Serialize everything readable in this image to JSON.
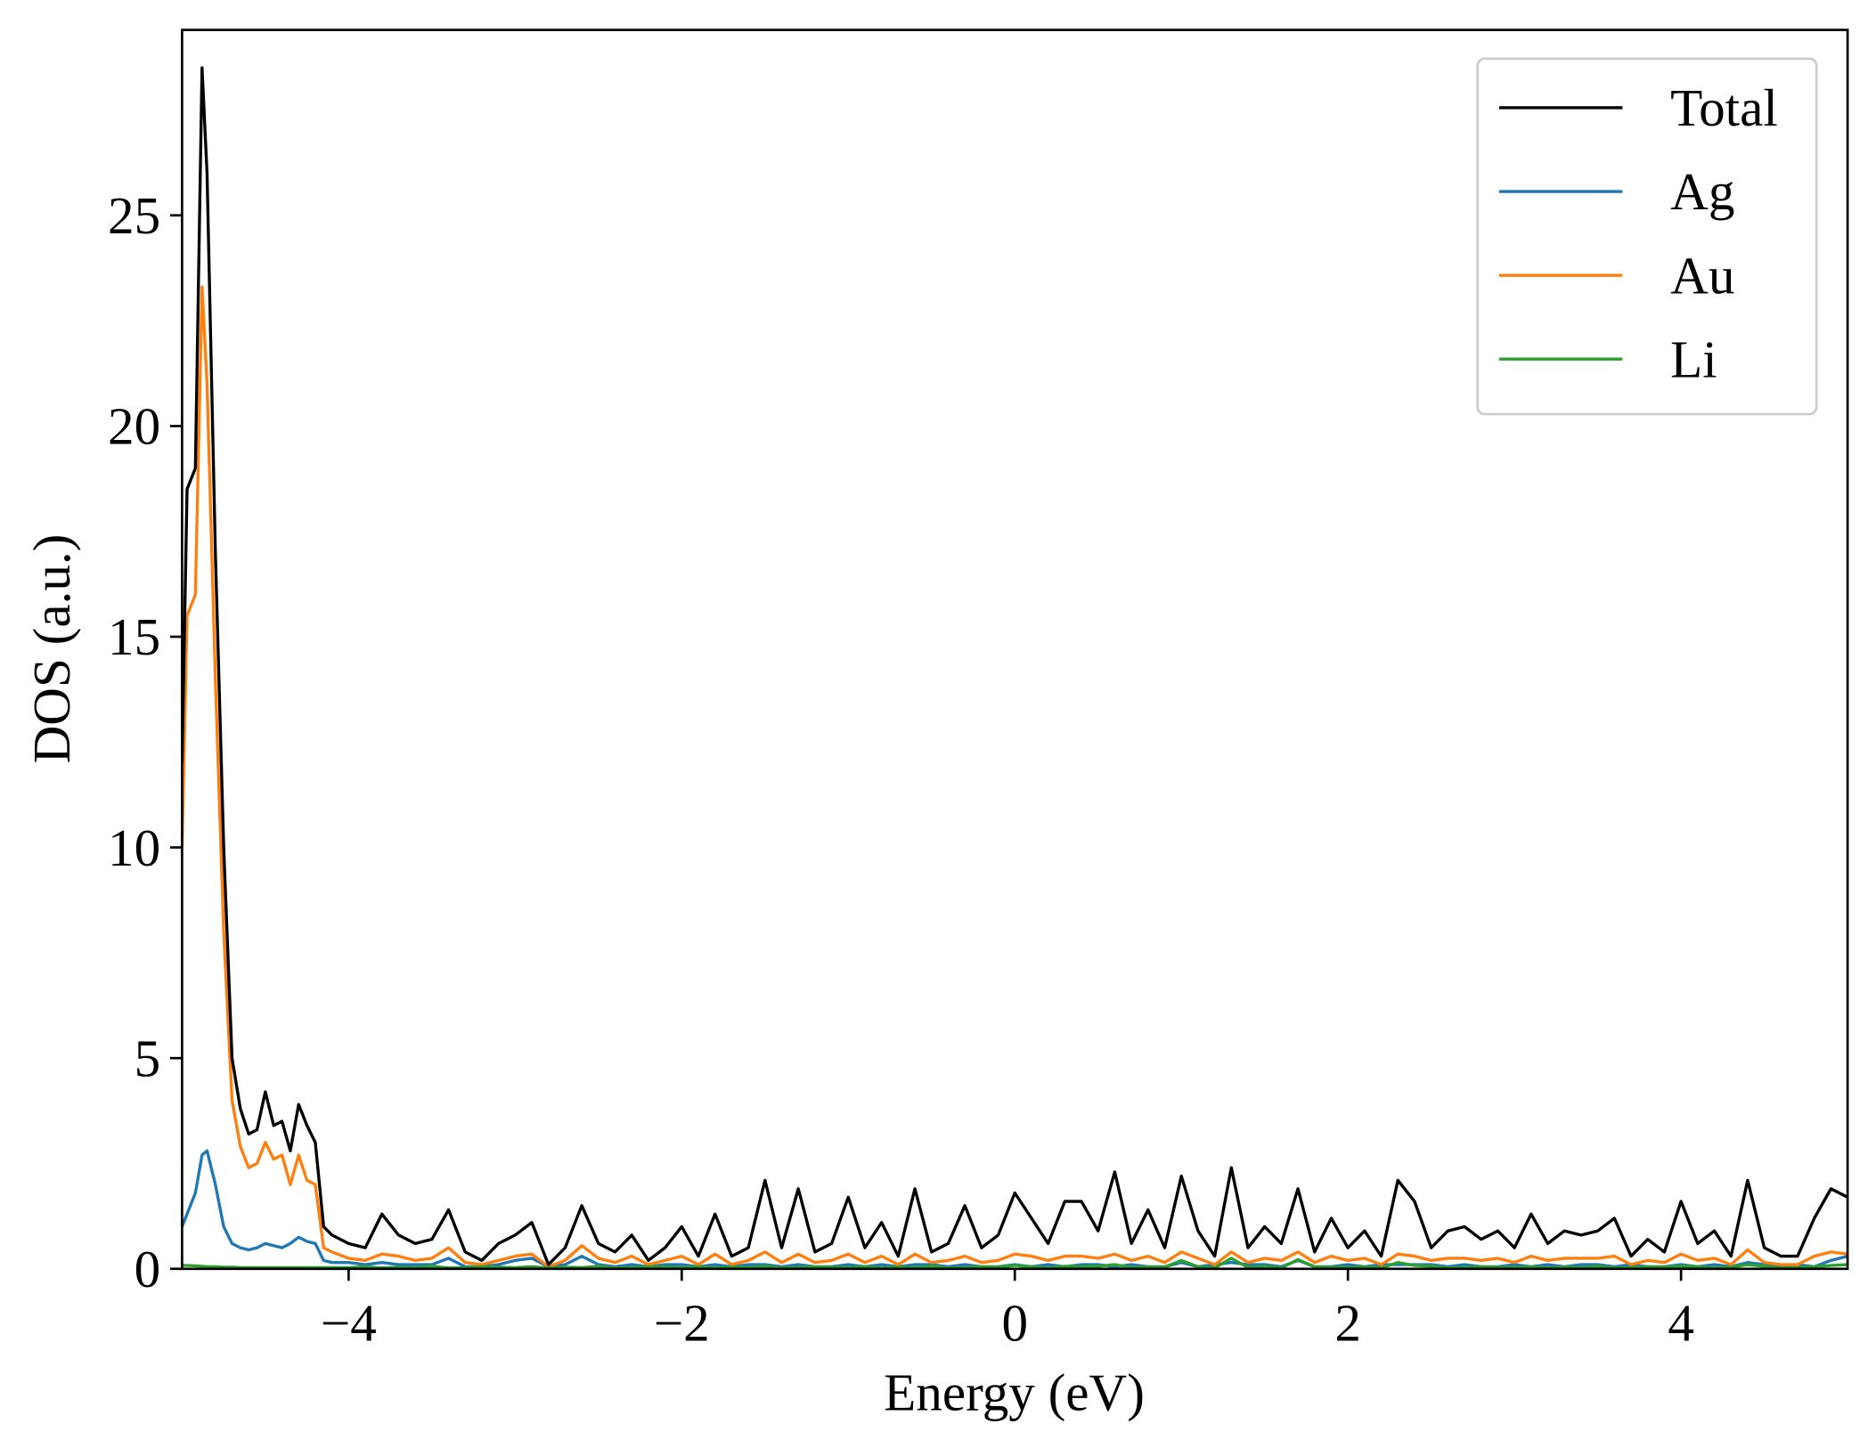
{
  "chart_data": {
    "type": "line",
    "xlabel": "Energy (eV)",
    "ylabel": "DOS (a.u.)",
    "xlim": [
      -5,
      5
    ],
    "ylim": [
      0,
      29.4
    ],
    "xticks": [
      {
        "value": -4,
        "label": "−4"
      },
      {
        "value": -2,
        "label": "−2"
      },
      0,
      2,
      4
    ],
    "yticks": [
      0,
      5,
      10,
      15,
      20,
      25
    ],
    "legend": "upper right",
    "x": [
      -5,
      -4.97,
      -4.92,
      -4.88,
      -4.85,
      -4.8,
      -4.75,
      -4.7,
      -4.65,
      -4.6,
      -4.55,
      -4.5,
      -4.45,
      -4.4,
      -4.35,
      -4.3,
      -4.25,
      -4.2,
      -4.15,
      -4.1,
      -4.0,
      -3.9,
      -3.8,
      -3.7,
      -3.6,
      -3.5,
      -3.4,
      -3.3,
      -3.2,
      -3.1,
      -3.0,
      -2.9,
      -2.8,
      -2.7,
      -2.6,
      -2.5,
      -2.4,
      -2.3,
      -2.2,
      -2.1,
      -2.0,
      -1.9,
      -1.8,
      -1.7,
      -1.6,
      -1.5,
      -1.4,
      -1.3,
      -1.2,
      -1.1,
      -1.0,
      -0.9,
      -0.8,
      -0.7,
      -0.6,
      -0.5,
      -0.4,
      -0.3,
      -0.2,
      -0.1,
      0,
      0.1,
      0.2,
      0.3,
      0.4,
      0.5,
      0.6,
      0.7,
      0.8,
      0.9,
      1.0,
      1.1,
      1.2,
      1.3,
      1.4,
      1.5,
      1.6,
      1.7,
      1.8,
      1.9,
      2.0,
      2.1,
      2.2,
      2.3,
      2.4,
      2.5,
      2.6,
      2.7,
      2.8,
      2.9,
      3.0,
      3.1,
      3.2,
      3.3,
      3.4,
      3.5,
      3.6,
      3.7,
      3.8,
      3.9,
      4.0,
      4.1,
      4.2,
      4.3,
      4.4,
      4.5,
      4.6,
      4.7,
      4.8,
      4.9,
      5.0
    ],
    "series": [
      {
        "name": "Total",
        "color": "#000000",
        "values": [
          12,
          18.5,
          19,
          28.5,
          26,
          17,
          10,
          5,
          3.8,
          3.2,
          3.3,
          4.2,
          3.4,
          3.5,
          2.8,
          3.9,
          3.4,
          3.0,
          1.0,
          0.8,
          0.6,
          0.5,
          1.3,
          0.8,
          0.6,
          0.7,
          1.4,
          0.4,
          0.2,
          0.6,
          0.8,
          1.1,
          0.1,
          0.5,
          1.5,
          0.6,
          0.4,
          0.8,
          0.2,
          0.5,
          1.0,
          0.3,
          1.3,
          0.3,
          0.5,
          2.1,
          0.5,
          1.9,
          0.4,
          0.6,
          1.7,
          0.5,
          1.1,
          0.3,
          1.9,
          0.4,
          0.6,
          1.5,
          0.5,
          0.8,
          1.8,
          1.2,
          0.6,
          1.6,
          1.6,
          0.9,
          2.3,
          0.6,
          1.4,
          0.5,
          2.2,
          0.9,
          0.3,
          2.4,
          0.5,
          1.0,
          0.6,
          1.9,
          0.4,
          1.2,
          0.5,
          0.9,
          0.3,
          2.1,
          1.6,
          0.5,
          0.9,
          1.0,
          0.7,
          0.9,
          0.5,
          1.3,
          0.6,
          0.9,
          0.8,
          0.9,
          1.2,
          0.3,
          0.7,
          0.4,
          1.6,
          0.6,
          0.9,
          0.3,
          2.1,
          0.5,
          0.3,
          0.3,
          1.2,
          1.9,
          1.7
        ]
      },
      {
        "name": "Ag",
        "color": "#1f77b4",
        "values": [
          1.0,
          1.3,
          1.8,
          2.7,
          2.8,
          2.0,
          1.0,
          0.6,
          0.5,
          0.45,
          0.5,
          0.6,
          0.55,
          0.5,
          0.6,
          0.75,
          0.65,
          0.6,
          0.2,
          0.15,
          0.15,
          0.1,
          0.15,
          0.1,
          0.1,
          0.1,
          0.25,
          0.05,
          0.05,
          0.1,
          0.2,
          0.25,
          0.05,
          0.1,
          0.3,
          0.1,
          0.05,
          0.1,
          0.05,
          0.1,
          0.1,
          0.05,
          0.1,
          0.05,
          0.1,
          0.1,
          0.05,
          0.1,
          0.05,
          0.05,
          0.1,
          0.05,
          0.1,
          0.05,
          0.1,
          0.1,
          0.05,
          0.1,
          0.05,
          0.05,
          0.1,
          0.05,
          0.1,
          0.05,
          0.1,
          0.1,
          0.05,
          0.1,
          0.05,
          0.05,
          0.15,
          0.05,
          0.1,
          0.15,
          0.1,
          0.1,
          0.05,
          0.2,
          0.05,
          0.05,
          0.1,
          0.05,
          0.1,
          0.1,
          0.1,
          0.1,
          0.05,
          0.1,
          0.05,
          0.05,
          0.1,
          0.05,
          0.1,
          0.05,
          0.1,
          0.1,
          0.05,
          0.1,
          0.05,
          0.05,
          0.1,
          0.05,
          0.1,
          0.05,
          0.15,
          0.1,
          0.05,
          0.1,
          0.05,
          0.2,
          0.3
        ]
      },
      {
        "name": "Au",
        "color": "#ff7f0e",
        "values": [
          10,
          15.5,
          16,
          23.3,
          21,
          14,
          8,
          4,
          2.9,
          2.4,
          2.5,
          3.0,
          2.6,
          2.7,
          2.0,
          2.7,
          2.1,
          2.0,
          0.5,
          0.4,
          0.25,
          0.2,
          0.35,
          0.3,
          0.2,
          0.25,
          0.5,
          0.15,
          0.1,
          0.2,
          0.3,
          0.35,
          0.05,
          0.2,
          0.55,
          0.25,
          0.15,
          0.3,
          0.1,
          0.2,
          0.3,
          0.1,
          0.35,
          0.1,
          0.2,
          0.4,
          0.15,
          0.35,
          0.15,
          0.2,
          0.35,
          0.15,
          0.3,
          0.1,
          0.35,
          0.15,
          0.2,
          0.3,
          0.15,
          0.2,
          0.35,
          0.3,
          0.2,
          0.3,
          0.3,
          0.25,
          0.35,
          0.2,
          0.3,
          0.15,
          0.4,
          0.25,
          0.1,
          0.4,
          0.15,
          0.25,
          0.2,
          0.4,
          0.15,
          0.3,
          0.2,
          0.25,
          0.1,
          0.35,
          0.3,
          0.2,
          0.25,
          0.25,
          0.2,
          0.25,
          0.15,
          0.3,
          0.2,
          0.25,
          0.25,
          0.25,
          0.3,
          0.1,
          0.2,
          0.15,
          0.35,
          0.2,
          0.25,
          0.1,
          0.45,
          0.15,
          0.1,
          0.1,
          0.3,
          0.4,
          0.35
        ]
      },
      {
        "name": "Li",
        "color": "#2ca02c",
        "values": [
          0.08,
          0.08,
          0.07,
          0.06,
          0.05,
          0.05,
          0.04,
          0.04,
          0.03,
          0.03,
          0.03,
          0.03,
          0.03,
          0.03,
          0.03,
          0.03,
          0.03,
          0.03,
          0.03,
          0.03,
          0.03,
          0.05,
          0.02,
          0.04,
          0.03,
          0.06,
          0.02,
          0.03,
          0.05,
          0.04,
          0.03,
          0.05,
          0.02,
          0.04,
          0.03,
          0.06,
          0.02,
          0.03,
          0.05,
          0.04,
          0.03,
          0.05,
          0.02,
          0.04,
          0.03,
          0.06,
          0.02,
          0.03,
          0.05,
          0.04,
          0.03,
          0.05,
          0.02,
          0.04,
          0.03,
          0.06,
          0.02,
          0.03,
          0.05,
          0.04,
          0.08,
          0.05,
          0.02,
          0.06,
          0.05,
          0.06,
          0.1,
          0.03,
          0.05,
          0.04,
          0.2,
          0.05,
          0.02,
          0.25,
          0.03,
          0.06,
          0.02,
          0.22,
          0.05,
          0.04,
          0.03,
          0.05,
          0.02,
          0.15,
          0.08,
          0.06,
          0.02,
          0.03,
          0.05,
          0.04,
          0.03,
          0.05,
          0.02,
          0.04,
          0.03,
          0.06,
          0.02,
          0.03,
          0.05,
          0.04,
          0.06,
          0.05,
          0.02,
          0.04,
          0.1,
          0.06,
          0.02,
          0.03,
          0.05,
          0.08,
          0.1
        ]
      }
    ]
  }
}
